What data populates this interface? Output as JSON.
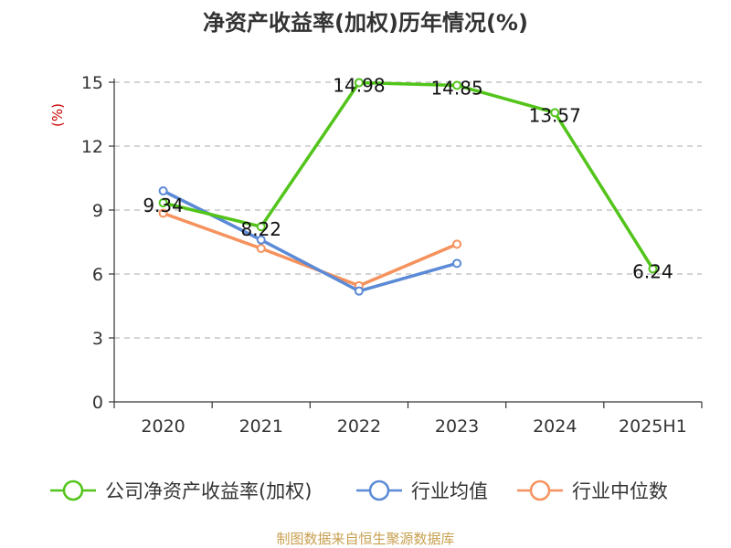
{
  "chart_data": {
    "type": "line",
    "title": "净资产收益率(加权)历年情况(%)",
    "ylabel": "(%)",
    "xlabel": "",
    "categories": [
      "2020",
      "2021",
      "2022",
      "2023",
      "2024",
      "2025H1"
    ],
    "ylim": [
      0,
      15
    ],
    "yticks": [
      0,
      3,
      6,
      9,
      12,
      15
    ],
    "grid": true,
    "legend_position": "bottom",
    "series": [
      {
        "name": "公司净资产收益率(加权)",
        "color": "#52c41a",
        "values": [
          9.34,
          8.22,
          14.98,
          14.85,
          13.57,
          6.24
        ],
        "labels": true
      },
      {
        "name": "行业均值",
        "color": "#5b8ad6",
        "values": [
          9.9,
          7.6,
          5.2,
          6.5,
          null,
          null
        ],
        "labels": false
      },
      {
        "name": "行业中位数",
        "color": "#f5925e",
        "values": [
          8.85,
          7.2,
          5.45,
          7.4,
          null,
          null
        ],
        "labels": false
      }
    ]
  },
  "source": "制图数据来自恒生聚源数据库"
}
